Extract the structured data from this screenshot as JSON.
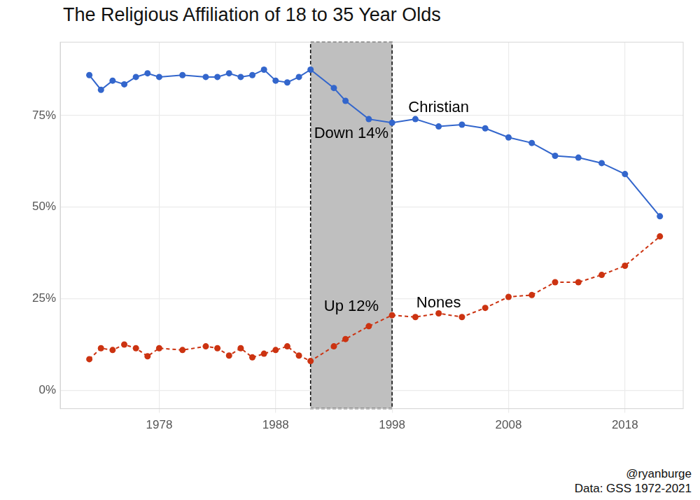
{
  "chart_data": {
    "type": "line",
    "title": "The Religious Affiliation of 18 to 35 Year Olds",
    "caption": [
      "@ryanburge",
      "Data: GSS 1972-2021"
    ],
    "x": [
      1972,
      1973,
      1974,
      1975,
      1976,
      1977,
      1978,
      1980,
      1982,
      1983,
      1984,
      1985,
      1986,
      1987,
      1988,
      1989,
      1990,
      1991,
      1993,
      1994,
      1996,
      1998,
      2000,
      2002,
      2004,
      2006,
      2008,
      2010,
      2012,
      2014,
      2016,
      2018,
      2021
    ],
    "series": [
      {
        "name": "Christian",
        "color": "#3366cc",
        "line_style": "solid",
        "marker": "circle",
        "values": [
          86,
          82,
          84.5,
          83.5,
          85.5,
          86.5,
          85.5,
          86,
          85.5,
          85.5,
          86.5,
          85.5,
          86,
          87.5,
          84.5,
          84,
          85.5,
          87.5,
          82.5,
          79,
          74,
          73,
          74,
          72,
          72.5,
          71.5,
          69,
          67.5,
          64,
          63.5,
          62,
          59,
          47.5
        ],
        "label": {
          "x": 2002,
          "y": 77
        }
      },
      {
        "name": "Nones",
        "color": "#cc3311",
        "line_style": "dashed",
        "marker": "circle",
        "values": [
          8.5,
          11.5,
          11,
          12.5,
          11.5,
          9.3,
          11.5,
          11,
          12,
          11.5,
          9.5,
          11.5,
          9,
          10,
          11,
          12,
          9.5,
          8,
          12,
          14,
          17.5,
          20.5,
          20,
          21,
          20,
          22.5,
          25.5,
          26,
          29.5,
          29.5,
          31.5,
          34,
          42
        ],
        "label": {
          "x": 2002,
          "y": 23.7
        }
      }
    ],
    "xlim": [
      1969.5,
      2023
    ],
    "xticks": [
      1978,
      1988,
      1998,
      2008,
      2018
    ],
    "ylim": [
      -5,
      95
    ],
    "yticks": [
      {
        "value": 0,
        "label": "0%"
      },
      {
        "value": 25,
        "label": "25%"
      },
      {
        "value": 50,
        "label": "50%"
      },
      {
        "value": 75,
        "label": "75%"
      }
    ],
    "grid": true,
    "highlight": {
      "x": [
        1991,
        1998
      ]
    },
    "annotations": [
      {
        "text": "Down 14%",
        "x": 1994.5,
        "y": 70
      },
      {
        "text": "Up 12%",
        "x": 1994.5,
        "y": 22.8
      }
    ]
  }
}
